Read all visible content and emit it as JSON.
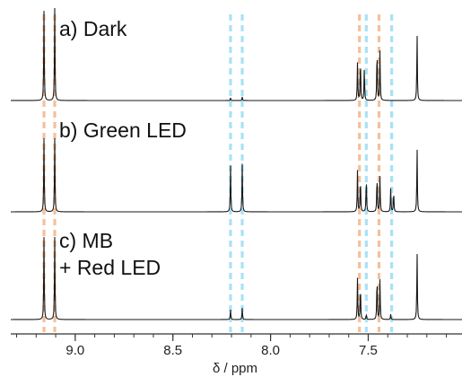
{
  "chart_data": {
    "type": "line",
    "xlabel": "δ / ppm",
    "x_reversed": true,
    "xlim": [
      9.33,
      7.02
    ],
    "ticks": [
      9.0,
      8.5,
      8.0,
      7.5
    ],
    "tick_labels": [
      "9.0",
      "8.5",
      "8.0",
      "7.5"
    ],
    "minor_tick_step": 0.1,
    "series": [
      {
        "label": "a) Dark",
        "label_lines": [
          "a) Dark"
        ],
        "peaks": [
          {
            "ppm": 9.16,
            "h": 1.0
          },
          {
            "ppm": 9.105,
            "h": 1.03
          },
          {
            "ppm": 8.205,
            "h": 0.03
          },
          {
            "ppm": 8.145,
            "h": 0.04
          },
          {
            "ppm": 7.555,
            "h": 0.42
          },
          {
            "ppm": 7.54,
            "h": 0.5
          },
          {
            "ppm": 7.52,
            "h": 0.38
          },
          {
            "ppm": 7.455,
            "h": 0.62
          },
          {
            "ppm": 7.44,
            "h": 0.56
          },
          {
            "ppm": 7.25,
            "h": 0.76
          }
        ]
      },
      {
        "label": "b) Green LED",
        "label_lines": [
          "b) Green LED"
        ],
        "peaks": [
          {
            "ppm": 9.16,
            "h": 0.82
          },
          {
            "ppm": 9.105,
            "h": 0.82
          },
          {
            "ppm": 8.205,
            "h": 0.52
          },
          {
            "ppm": 8.145,
            "h": 0.54
          },
          {
            "ppm": 7.555,
            "h": 0.46
          },
          {
            "ppm": 7.54,
            "h": 0.4
          },
          {
            "ppm": 7.51,
            "h": 0.4
          },
          {
            "ppm": 7.455,
            "h": 0.44
          },
          {
            "ppm": 7.44,
            "h": 0.4
          },
          {
            "ppm": 7.385,
            "h": 0.26
          },
          {
            "ppm": 7.37,
            "h": 0.24
          },
          {
            "ppm": 7.25,
            "h": 0.73
          }
        ]
      },
      {
        "label": "c) MB + Red LED",
        "label_lines": [
          "c) MB",
          "+ Red LED"
        ],
        "peaks": [
          {
            "ppm": 9.16,
            "h": 0.92
          },
          {
            "ppm": 9.105,
            "h": 0.92
          },
          {
            "ppm": 8.205,
            "h": 0.11
          },
          {
            "ppm": 8.145,
            "h": 0.13
          },
          {
            "ppm": 7.555,
            "h": 0.46
          },
          {
            "ppm": 7.54,
            "h": 0.4
          },
          {
            "ppm": 7.51,
            "h": 0.06
          },
          {
            "ppm": 7.455,
            "h": 0.51
          },
          {
            "ppm": 7.44,
            "h": 0.45
          },
          {
            "ppm": 7.385,
            "h": 0.06
          },
          {
            "ppm": 7.25,
            "h": 0.77
          }
        ]
      }
    ],
    "markers": [
      {
        "ppm": 9.16,
        "color": "#f5c09a",
        "style": "dashed"
      },
      {
        "ppm": 9.105,
        "color": "#f5c09a",
        "style": "dashed"
      },
      {
        "ppm": 8.205,
        "color": "#a8e2f5",
        "style": "dashed"
      },
      {
        "ppm": 8.145,
        "color": "#a8e2f5",
        "style": "dashed"
      },
      {
        "ppm": 7.545,
        "color": "#f5c09a",
        "style": "dashed"
      },
      {
        "ppm": 7.51,
        "color": "#a8e2f5",
        "style": "dashed"
      },
      {
        "ppm": 7.445,
        "color": "#f5c09a",
        "style": "dashed"
      },
      {
        "ppm": 7.38,
        "color": "#a8e2f5",
        "style": "dashed"
      }
    ],
    "colors": {
      "trace": "#1a1a1a",
      "axis": "#333333",
      "orange": "#f5c09a",
      "cyan": "#a8e2f5"
    }
  }
}
